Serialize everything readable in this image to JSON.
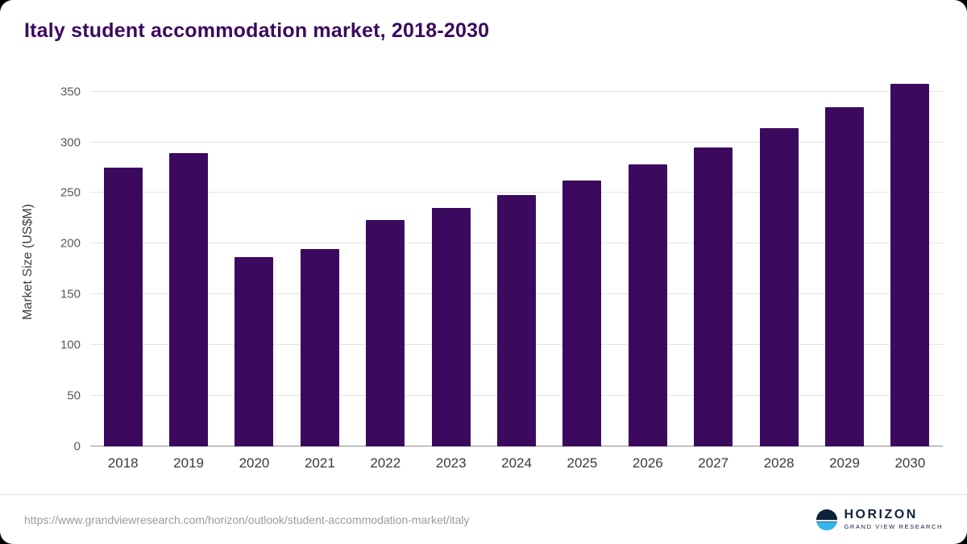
{
  "title": "Italy student accommodation market, 2018-2030",
  "chart_data": {
    "type": "bar",
    "categories": [
      "2018",
      "2019",
      "2020",
      "2021",
      "2022",
      "2023",
      "2024",
      "2025",
      "2026",
      "2027",
      "2028",
      "2029",
      "2030"
    ],
    "values": [
      275,
      289,
      187,
      195,
      223,
      235,
      248,
      262,
      278,
      295,
      314,
      335,
      358
    ],
    "title": "Italy student accommodation market, 2018-2030",
    "xlabel": "",
    "ylabel": "Market Size (US$M)",
    "yticks": [
      0,
      50,
      100,
      150,
      200,
      250,
      300,
      350
    ],
    "ylim": [
      0,
      364
    ],
    "grid": true,
    "legend": "none",
    "bar_color": "#3b0a5e"
  },
  "footer": {
    "source_url": "https://www.grandviewresearch.com/horizon/outlook/student-accommodation-market/italy",
    "logo_name": "HORIZON",
    "logo_sub": "GRAND VIEW RESEARCH"
  }
}
